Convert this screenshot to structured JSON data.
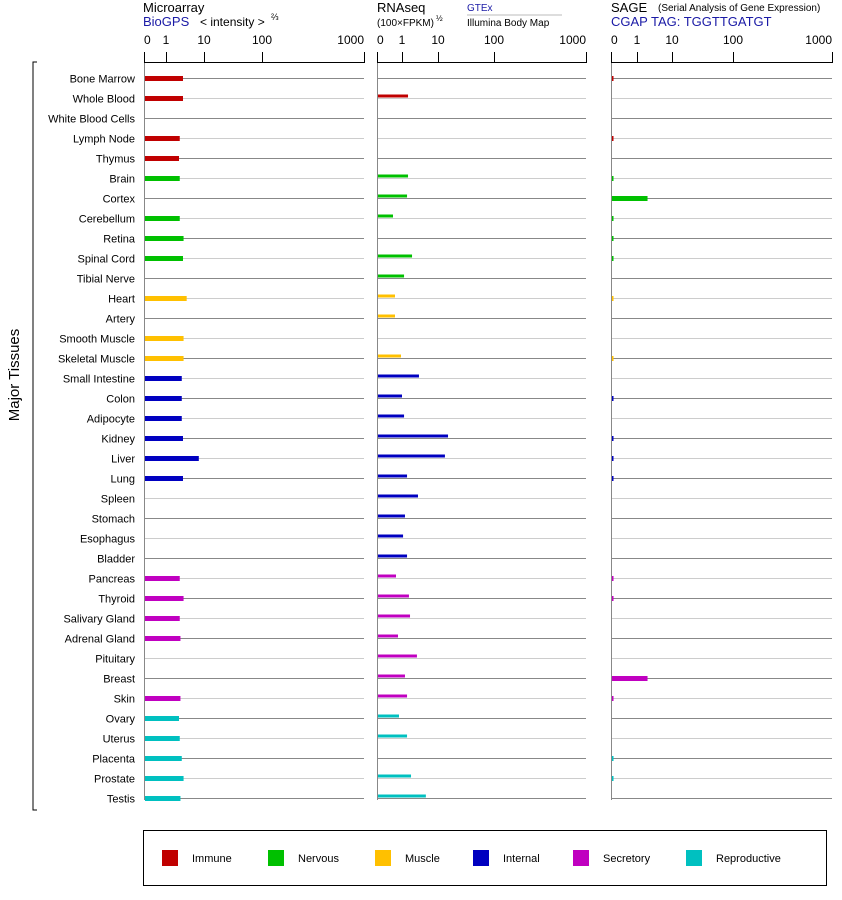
{
  "chart_data": {
    "type": "bar",
    "ylabel": "Major Tissues",
    "panels": [
      {
        "id": "microarray",
        "title": "Microarray",
        "source": "BioGPS",
        "unit_prefix": "< intensity >",
        "unit_exp": "⅔",
        "ticks": [
          "0",
          "1",
          "10",
          "100",
          "1000"
        ],
        "xlim": [
          0,
          1000
        ]
      },
      {
        "id": "rnaseq",
        "title": "RNAseq",
        "unit_prefix": "(100×FPKM)",
        "unit_exp": "½",
        "source_top": "GTEx",
        "source_bottom": "Illumina Body Map",
        "ticks": [
          "0",
          "1",
          "10",
          "100",
          "1000"
        ],
        "xlim": [
          0,
          1000
        ]
      },
      {
        "id": "sage",
        "title": "SAGE",
        "subtitle": "(Serial Analysis of Gene Expression)",
        "tag": "CGAP TAG: TGGTTGATGT",
        "ticks": [
          "0",
          "1",
          "10",
          "100",
          "1000"
        ],
        "xlim": [
          0,
          1000
        ]
      }
    ],
    "groups": [
      {
        "name": "Immune",
        "color": "#c00000"
      },
      {
        "name": "Nervous",
        "color": "#00c000"
      },
      {
        "name": "Muscle",
        "color": "#ffc000"
      },
      {
        "name": "Internal",
        "color": "#0000c0"
      },
      {
        "name": "Secretory",
        "color": "#c000c0"
      },
      {
        "name": "Reproductive",
        "color": "#00c0c0"
      }
    ],
    "tissues": [
      {
        "name": "Bone Marrow",
        "group": 0,
        "microarray": 2.8,
        "rnaseq": null,
        "sage": 0.05
      },
      {
        "name": "Whole Blood",
        "group": 0,
        "microarray": 2.8,
        "rnaseq": 1.47,
        "sage": null
      },
      {
        "name": "White Blood Cells",
        "group": 0,
        "microarray": null,
        "rnaseq": null,
        "sage": null
      },
      {
        "name": "Lymph Node",
        "group": 0,
        "microarray": 2.3,
        "rnaseq": null,
        "sage": 0.05
      },
      {
        "name": "Thymus",
        "group": 0,
        "microarray": 2.2,
        "rnaseq": null,
        "sage": null
      },
      {
        "name": "Brain",
        "group": 1,
        "microarray": 2.3,
        "rnaseq": 1.47,
        "sage": 0.05
      },
      {
        "name": "Cortex",
        "group": 1,
        "microarray": null,
        "rnaseq": 1.38,
        "sage": 2.0
      },
      {
        "name": "Cerebellum",
        "group": 1,
        "microarray": 2.3,
        "rnaseq": 0.64,
        "sage": 0.05
      },
      {
        "name": "Retina",
        "group": 1,
        "microarray": 2.9,
        "rnaseq": null,
        "sage": 0.05
      },
      {
        "name": "Spinal Cord",
        "group": 1,
        "microarray": 2.8,
        "rnaseq": 1.9,
        "sage": 0.05
      },
      {
        "name": "Tibial Nerve",
        "group": 1,
        "microarray": null,
        "rnaseq": 1.14,
        "sage": null
      },
      {
        "name": "Heart",
        "group": 2,
        "microarray": 3.5,
        "rnaseq": 0.72,
        "sage": 0.05
      },
      {
        "name": "Artery",
        "group": 2,
        "microarray": null,
        "rnaseq": 0.72,
        "sage": null
      },
      {
        "name": "Smooth Muscle",
        "group": 2,
        "microarray": 2.9,
        "rnaseq": null,
        "sage": null
      },
      {
        "name": "Skeletal Muscle",
        "group": 2,
        "microarray": 2.9,
        "rnaseq": 0.96,
        "sage": 0.05
      },
      {
        "name": "Small Intestine",
        "group": 3,
        "microarray": 2.6,
        "rnaseq": 2.96,
        "sage": null
      },
      {
        "name": "Colon",
        "group": 3,
        "microarray": 2.6,
        "rnaseq": 1.0,
        "sage": 0.05
      },
      {
        "name": "Adipocyte",
        "group": 3,
        "microarray": 2.6,
        "rnaseq": 1.14,
        "sage": null
      },
      {
        "name": "Kidney",
        "group": 3,
        "microarray": 2.8,
        "rnaseq": 15.1,
        "sage": 0.05
      },
      {
        "name": "Liver",
        "group": 3,
        "microarray": 7.3,
        "rnaseq": 13.3,
        "sage": 0.05
      },
      {
        "name": "Lung",
        "group": 3,
        "microarray": 2.8,
        "rnaseq": 1.38,
        "sage": 0.05
      },
      {
        "name": "Spleen",
        "group": 3,
        "microarray": null,
        "rnaseq": 2.78,
        "sage": null
      },
      {
        "name": "Stomach",
        "group": 3,
        "microarray": null,
        "rnaseq": 1.21,
        "sage": null
      },
      {
        "name": "Esophagus",
        "group": 3,
        "microarray": null,
        "rnaseq": 1.07,
        "sage": null
      },
      {
        "name": "Bladder",
        "group": 3,
        "microarray": null,
        "rnaseq": 1.38,
        "sage": null
      },
      {
        "name": "Pancreas",
        "group": 4,
        "microarray": 2.3,
        "rnaseq": 0.76,
        "sage": 0.05
      },
      {
        "name": "Thyroid",
        "group": 4,
        "microarray": 2.9,
        "rnaseq": 1.56,
        "sage": 0.05
      },
      {
        "name": "Salivary Gland",
        "group": 4,
        "microarray": 2.3,
        "rnaseq": 1.67,
        "sage": null
      },
      {
        "name": "Adrenal Gland",
        "group": 4,
        "microarray": 2.4,
        "rnaseq": 0.84,
        "sage": null
      },
      {
        "name": "Pituitary",
        "group": 4,
        "microarray": null,
        "rnaseq": 2.6,
        "sage": null
      },
      {
        "name": "Breast",
        "group": 4,
        "microarray": null,
        "rnaseq": 1.21,
        "sage": 2.0
      },
      {
        "name": "Skin",
        "group": 4,
        "microarray": 2.4,
        "rnaseq": 1.38,
        "sage": 0.05
      },
      {
        "name": "Ovary",
        "group": 5,
        "microarray": 2.2,
        "rnaseq": 0.88,
        "sage": null
      },
      {
        "name": "Uterus",
        "group": 5,
        "microarray": 2.3,
        "rnaseq": 1.38,
        "sage": null
      },
      {
        "name": "Placenta",
        "group": 5,
        "microarray": 2.6,
        "rnaseq": null,
        "sage": 0.05
      },
      {
        "name": "Prostate",
        "group": 5,
        "microarray": 2.9,
        "rnaseq": 1.78,
        "sage": 0.05
      },
      {
        "name": "Testis",
        "group": 5,
        "microarray": 2.4,
        "rnaseq": 4.6,
        "sage": null
      }
    ]
  }
}
